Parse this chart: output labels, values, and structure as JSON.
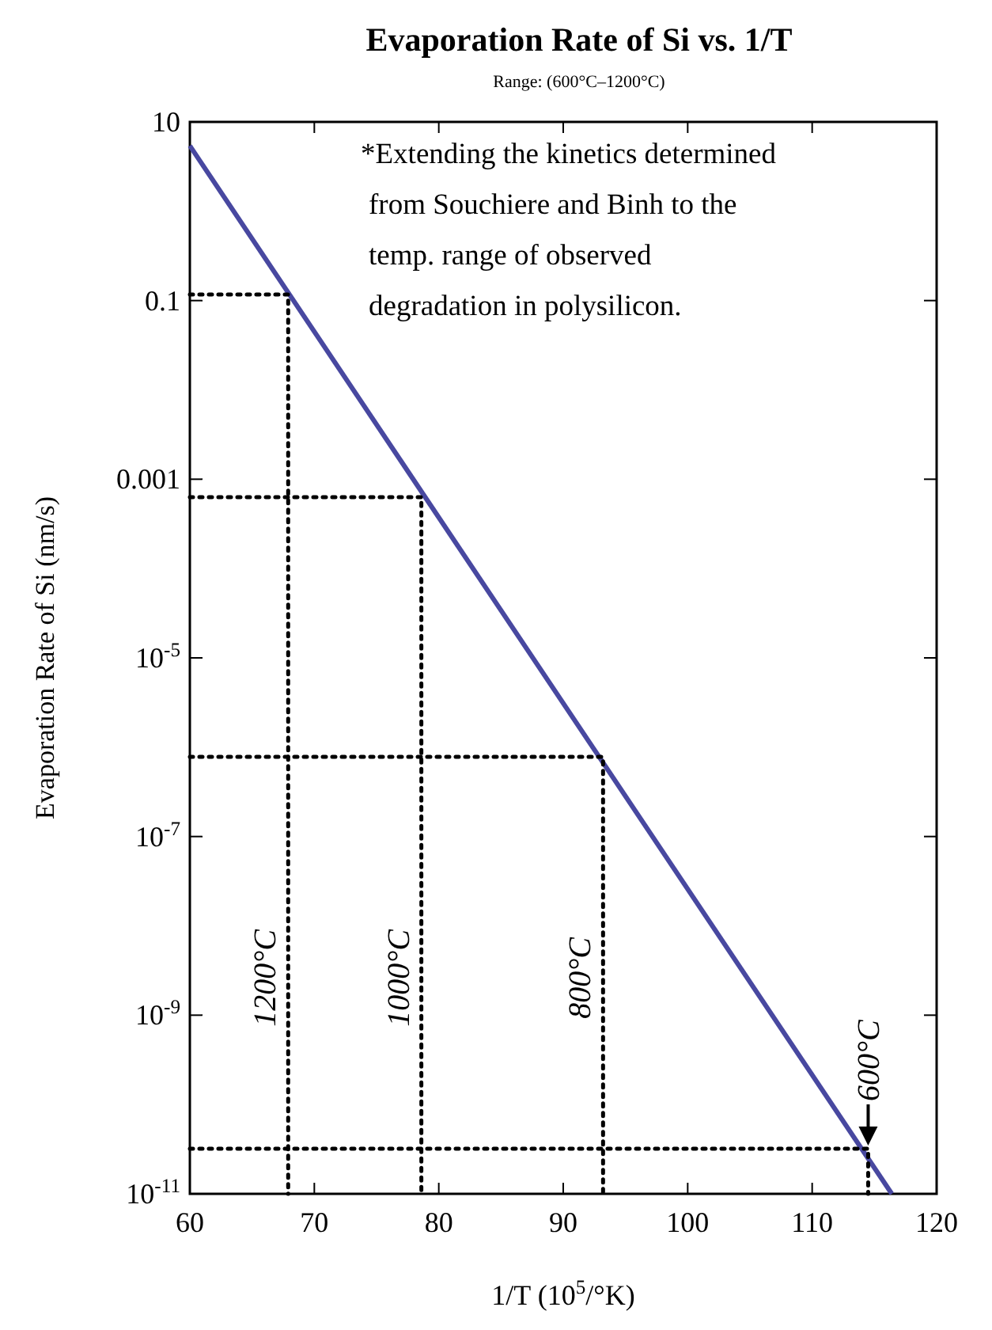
{
  "chart_data": {
    "type": "line",
    "title": "Evaporation Rate of Si vs. 1/T",
    "subtitle": "Range: (600°C–1200°C)",
    "xlabel": "1/T (10$^{5}$/°K)",
    "ylabel": "Evaporation Rate of Si (nm/s)",
    "log": "y",
    "xlim": [
      60,
      120
    ],
    "xticks": [
      60,
      70,
      80,
      90,
      100,
      110,
      120
    ],
    "ylim": [
      1e-11,
      10
    ],
    "yticks": [
      10,
      0.1,
      0.001,
      {
        "value": 1e-05,
        "label": "10$^{-5}$"
      },
      {
        "value": 1e-07,
        "label": "10$^{-7}$"
      },
      {
        "value": 1e-09,
        "label": "10$^{-9}$"
      },
      {
        "value": 1e-11,
        "label": "10$^{-11}$"
      }
    ],
    "series": [
      {
        "color": "#4848a0",
        "x": [
          60,
          116.4
        ],
        "values": [
          5.4,
          1e-11
        ]
      },
      {
        "color": "#000000",
        "line_style": "dotted",
        "x": [
          60,
          67.9,
          67.9
        ],
        "values": [
          0.117,
          0.117,
          1e-11
        ]
      },
      {
        "color": "#000000",
        "line_style": "dotted",
        "x": [
          60,
          78.6,
          78.6
        ],
        "values": [
          0.00063,
          0.00063,
          1e-11
        ]
      },
      {
        "color": "#000000",
        "line_style": "dotted",
        "x": [
          60,
          93.2,
          93.2
        ],
        "values": [
          7.8e-07,
          7.8e-07,
          1e-11
        ]
      },
      {
        "color": "#000000",
        "line_style": "dotted",
        "x": [
          60,
          114.5,
          114.5
        ],
        "values": [
          3.2e-11,
          3.2e-11,
          1e-11
        ]
      }
    ],
    "annotations": [
      "*Extending the kinetics determined\nfrom Souchiere and Binh to the\ntemp. range of observed\ndegradation in polysilicon.",
      {
        "text": "1200°C",
        "x": 67.9,
        "y": 2.6e-09
      },
      {
        "text": "1000°C",
        "x": 78.6,
        "y": 2.6e-09
      },
      {
        "text": "800°C",
        "x": 93.2,
        "y": 2.6e-09
      },
      {
        "text": "600°C",
        "x": 114.5,
        "y": 3.2e-11
      }
    ]
  }
}
